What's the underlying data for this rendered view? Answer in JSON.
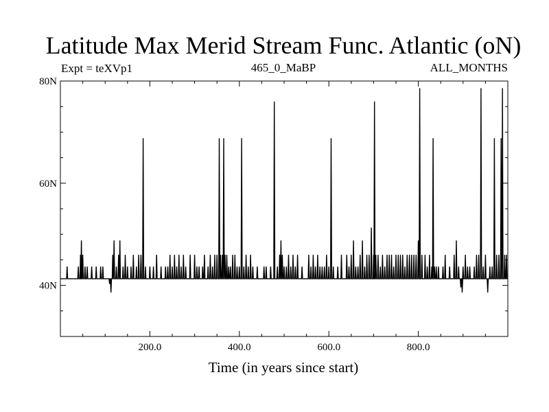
{
  "chart_data": {
    "type": "line",
    "title": "Latitude Max Merid Stream Func. Atlantic (oN)",
    "subtitle_left": "Expt = teXVp1",
    "subtitle_center": "465_0_MaBP",
    "subtitle_right": "ALL_MONTHS",
    "xlabel": "Time (in years since start)",
    "ylabel": "",
    "xlim": [
      0,
      1000
    ],
    "ylim": [
      30,
      80
    ],
    "x_ticks": [
      200,
      400,
      600,
      800
    ],
    "x_tick_labels": [
      "200.0",
      "400.0",
      "600.0",
      "800.0"
    ],
    "y_ticks": [
      40,
      60,
      80
    ],
    "y_tick_labels": [
      "40N",
      "60N",
      "80N"
    ],
    "grid": false,
    "series": [
      {
        "color": "#000000",
        "baseline": 41.3,
        "spikes": [
          [
            15,
            43.7
          ],
          [
            40,
            43.7
          ],
          [
            45,
            46.0
          ],
          [
            47,
            48.8
          ],
          [
            50,
            46.0
          ],
          [
            55,
            43.7
          ],
          [
            60,
            43.7
          ],
          [
            70,
            43.7
          ],
          [
            80,
            43.7
          ],
          [
            90,
            43.7
          ],
          [
            95,
            43.7
          ],
          [
            110,
            40.3
          ],
          [
            113,
            38.6
          ],
          [
            117,
            46.0
          ],
          [
            120,
            48.8
          ],
          [
            125,
            43.7
          ],
          [
            130,
            46.0
          ],
          [
            133,
            48.8
          ],
          [
            140,
            43.7
          ],
          [
            145,
            46.0
          ],
          [
            150,
            43.7
          ],
          [
            158,
            43.7
          ],
          [
            163,
            46.0
          ],
          [
            170,
            43.7
          ],
          [
            175,
            46.0
          ],
          [
            180,
            46.0
          ],
          [
            185,
            68.8
          ],
          [
            190,
            43.7
          ],
          [
            200,
            43.7
          ],
          [
            208,
            43.7
          ],
          [
            215,
            46.0
          ],
          [
            225,
            43.7
          ],
          [
            235,
            43.7
          ],
          [
            240,
            43.7
          ],
          [
            245,
            46.0
          ],
          [
            250,
            43.7
          ],
          [
            255,
            46.0
          ],
          [
            260,
            43.7
          ],
          [
            265,
            46.0
          ],
          [
            270,
            43.7
          ],
          [
            275,
            46.0
          ],
          [
            280,
            43.7
          ],
          [
            290,
            46.0
          ],
          [
            300,
            46.0
          ],
          [
            305,
            43.7
          ],
          [
            310,
            43.7
          ],
          [
            318,
            43.7
          ],
          [
            322,
            46.0
          ],
          [
            330,
            43.7
          ],
          [
            335,
            46.0
          ],
          [
            340,
            43.7
          ],
          [
            345,
            46.0
          ],
          [
            350,
            46.0
          ],
          [
            355,
            68.8
          ],
          [
            358,
            46.0
          ],
          [
            362,
            46.0
          ],
          [
            365,
            68.8
          ],
          [
            368,
            46.0
          ],
          [
            372,
            46.0
          ],
          [
            376,
            43.7
          ],
          [
            380,
            43.7
          ],
          [
            385,
            46.0
          ],
          [
            390,
            46.0
          ],
          [
            395,
            43.7
          ],
          [
            400,
            43.7
          ],
          [
            405,
            68.8
          ],
          [
            410,
            43.7
          ],
          [
            415,
            46.0
          ],
          [
            420,
            43.7
          ],
          [
            425,
            46.0
          ],
          [
            430,
            43.7
          ],
          [
            440,
            43.7
          ],
          [
            455,
            43.7
          ],
          [
            460,
            43.7
          ],
          [
            470,
            43.7
          ],
          [
            478,
            76.0
          ],
          [
            485,
            43.7
          ],
          [
            490,
            46.0
          ],
          [
            493,
            48.8
          ],
          [
            496,
            46.0
          ],
          [
            500,
            43.7
          ],
          [
            505,
            43.7
          ],
          [
            510,
            46.0
          ],
          [
            515,
            43.7
          ],
          [
            520,
            46.0
          ],
          [
            525,
            43.7
          ],
          [
            530,
            46.0
          ],
          [
            540,
            43.7
          ],
          [
            555,
            46.0
          ],
          [
            560,
            43.7
          ],
          [
            565,
            46.0
          ],
          [
            570,
            43.7
          ],
          [
            575,
            46.0
          ],
          [
            580,
            43.7
          ],
          [
            585,
            43.7
          ],
          [
            590,
            43.7
          ],
          [
            595,
            46.0
          ],
          [
            600,
            43.7
          ],
          [
            605,
            68.8
          ],
          [
            610,
            43.7
          ],
          [
            620,
            43.7
          ],
          [
            628,
            46.0
          ],
          [
            640,
            46.0
          ],
          [
            645,
            43.7
          ],
          [
            650,
            46.0
          ],
          [
            655,
            48.8
          ],
          [
            660,
            43.7
          ],
          [
            665,
            43.7
          ],
          [
            670,
            46.0
          ],
          [
            675,
            48.8
          ],
          [
            680,
            43.7
          ],
          [
            685,
            46.0
          ],
          [
            690,
            46.0
          ],
          [
            695,
            51.3
          ],
          [
            700,
            46.0
          ],
          [
            702,
            76.0
          ],
          [
            705,
            46.0
          ],
          [
            710,
            46.0
          ],
          [
            715,
            43.7
          ],
          [
            720,
            46.0
          ],
          [
            725,
            43.7
          ],
          [
            730,
            46.0
          ],
          [
            735,
            46.0
          ],
          [
            740,
            46.0
          ],
          [
            745,
            43.7
          ],
          [
            750,
            46.0
          ],
          [
            755,
            46.0
          ],
          [
            760,
            46.0
          ],
          [
            765,
            46.0
          ],
          [
            770,
            43.7
          ],
          [
            775,
            46.0
          ],
          [
            780,
            46.0
          ],
          [
            785,
            46.0
          ],
          [
            790,
            46.0
          ],
          [
            795,
            46.0
          ],
          [
            800,
            48.8
          ],
          [
            803,
            78.6
          ],
          [
            808,
            46.0
          ],
          [
            815,
            46.0
          ],
          [
            820,
            43.7
          ],
          [
            825,
            46.0
          ],
          [
            830,
            43.7
          ],
          [
            833,
            68.8
          ],
          [
            836,
            43.7
          ],
          [
            840,
            43.7
          ],
          [
            845,
            43.7
          ],
          [
            855,
            43.7
          ],
          [
            860,
            46.0
          ],
          [
            870,
            43.7
          ],
          [
            880,
            46.0
          ],
          [
            885,
            48.8
          ],
          [
            890,
            43.7
          ],
          [
            895,
            39.6
          ],
          [
            898,
            38.6
          ],
          [
            900,
            43.7
          ],
          [
            905,
            46.0
          ],
          [
            910,
            43.7
          ],
          [
            915,
            43.7
          ],
          [
            925,
            43.7
          ],
          [
            930,
            46.0
          ],
          [
            935,
            46.0
          ],
          [
            940,
            78.6
          ],
          [
            945,
            43.7
          ],
          [
            950,
            46.0
          ],
          [
            955,
            38.6
          ],
          [
            960,
            43.7
          ],
          [
            965,
            43.7
          ],
          [
            970,
            68.8
          ],
          [
            975,
            46.0
          ],
          [
            980,
            46.0
          ],
          [
            985,
            68.8
          ],
          [
            988,
            78.6
          ],
          [
            993,
            46.0
          ],
          [
            997,
            46.0
          ]
        ]
      }
    ]
  }
}
